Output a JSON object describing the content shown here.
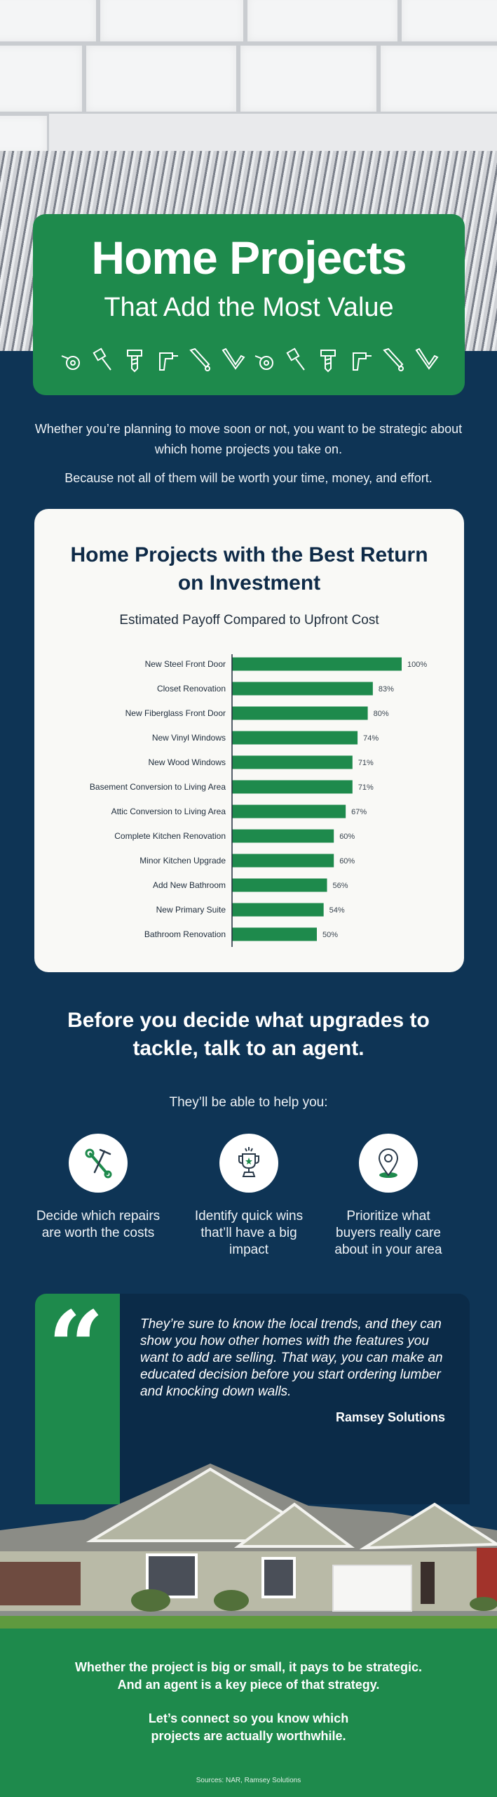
{
  "colors": {
    "navy": "#0e3455",
    "green": "#1e8a4c",
    "card": "#f9f9f6",
    "bar": "#1e8a4c"
  },
  "hero": {
    "title": "Home Projects",
    "subtitle": "That Add the Most Value",
    "tool_icons": [
      "tape-measure-icon",
      "paintbrush-icon",
      "screw-icon",
      "drill-icon",
      "saw-icon",
      "square-ruler-icon",
      "tape-measure-icon",
      "paintbrush-icon",
      "screw-icon",
      "drill-icon",
      "saw-icon",
      "square-ruler-icon"
    ]
  },
  "intro": {
    "p1": "Whether you’re planning to move soon or not, you want to be strategic about which home projects you take on.",
    "p2": "Because not all of them will be worth your time, money, and effort."
  },
  "chart_data": {
    "type": "bar",
    "orientation": "horizontal",
    "title": "Home Projects with the Best Return on Investment",
    "subtitle": "Estimated Payoff Compared to Upfront Cost",
    "categories": [
      "New Steel Front Door",
      "Closet Renovation",
      "New Fiberglass Front Door",
      "New Vinyl Windows",
      "New Wood Windows",
      "Basement Conversion to Living Area",
      "Attic Conversion to Living Area",
      "Complete Kitchen Renovation",
      "Minor Kitchen Upgrade",
      "Add New Bathroom",
      "New Primary Suite",
      "Bathroom Renovation"
    ],
    "values": [
      100,
      83,
      80,
      74,
      71,
      71,
      67,
      60,
      60,
      56,
      54,
      50
    ],
    "value_labels": [
      "100%",
      "83%",
      "80%",
      "74%",
      "71%",
      "71%",
      "67%",
      "60%",
      "60%",
      "56%",
      "54%",
      "50%"
    ],
    "xlim": [
      0,
      100
    ],
    "grid": false,
    "legend": "none"
  },
  "agent": {
    "heading": "Before you decide what upgrades to tackle, talk to an agent.",
    "lead": "They’ll be able to help you:",
    "items": [
      {
        "icon": "hammer-wrench-icon",
        "text": "Decide which repairs are worth the costs"
      },
      {
        "icon": "trophy-icon",
        "text": "Identify quick wins that’ll have a big impact"
      },
      {
        "icon": "location-pin-icon",
        "text": "Prioritize what buyers really care about in your area"
      }
    ]
  },
  "quote": {
    "text": "They’re sure to know the local trends, and they can show you how other homes with the features you want to add are selling. That way, you can make an educated decision before you start ordering lumber and knocking down walls.",
    "author": "Ramsey Solutions"
  },
  "footer": {
    "p1": "Whether the project is big or small, it pays to be strategic. And an agent is a key piece of that strategy.",
    "p2": "Let’s connect so you know which projects are actually worthwhile.",
    "sources": "Sources: NAR, Ramsey Solutions"
  }
}
